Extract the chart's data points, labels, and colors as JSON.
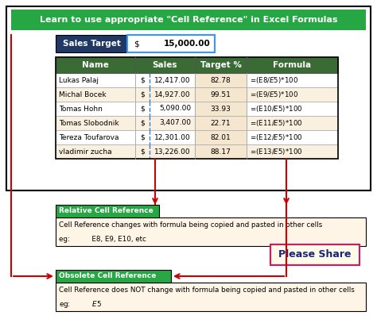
{
  "title": "Learn to use appropriate \"Cell Reference\" in Excel Formulas",
  "title_bg": "#27A644",
  "title_fg": "#FFFFFF",
  "sales_target_label": "Sales Target",
  "sales_target_label_bg": "#1F3864",
  "sales_target_border": "#3399FF",
  "table_headers": [
    "Name",
    "Sales",
    "Target %",
    "Formula"
  ],
  "table_header_bg": "#3A6B35",
  "table_header_fg": "#FFFFFF",
  "table_rows": [
    [
      "Lukas Palaj",
      "12,417.00",
      "82.78",
      "=(E8/$E$5)*100"
    ],
    [
      "Michal Bocek",
      "14,927.00",
      "99.51",
      "=(E9/$E$5)*100"
    ],
    [
      "Tomas Hohn",
      "5,090.00",
      "33.93",
      "=(E10/$E$5)*100"
    ],
    [
      "Tomas Slobodnik",
      "3,407.00",
      "22.71",
      "=(E11/$E$5)*100"
    ],
    [
      "Tereza Toufarova",
      "12,301.00",
      "82.01",
      "=(E12/$E$5)*100"
    ],
    [
      "vladimir zucha",
      "13,226.00",
      "88.17",
      "=(E13/$E$5)*100"
    ]
  ],
  "row_colors": [
    "#FFFFFF",
    "#FAF0E0",
    "#FFFFFF",
    "#FAF0E0",
    "#FFFFFF",
    "#FAF0E0"
  ],
  "target_pct_bg": "#F5E6D0",
  "relative_label": "Relative Cell Reference",
  "relative_bg": "#27A644",
  "relative_desc": "Cell Reference changes with formula being copied and pasted in other cells",
  "relative_eg": "eg:          E8, E9, E10, etc",
  "obsolete_label": "Obsolete Cell Reference",
  "obsolete_bg": "#27A644",
  "obsolete_desc": "Cell Reference does NOT change with formula being copied and pasted in other cells",
  "obsolete_eg": "eg:          $E$5",
  "please_share": "Please Share",
  "cream_bg": "#FFF5E6",
  "cream_bg2": "#FFFACD",
  "arrow_color": "#CC0000",
  "outer_border": "#000000",
  "fig_w": 4.74,
  "fig_h": 4.12,
  "dpi": 100
}
